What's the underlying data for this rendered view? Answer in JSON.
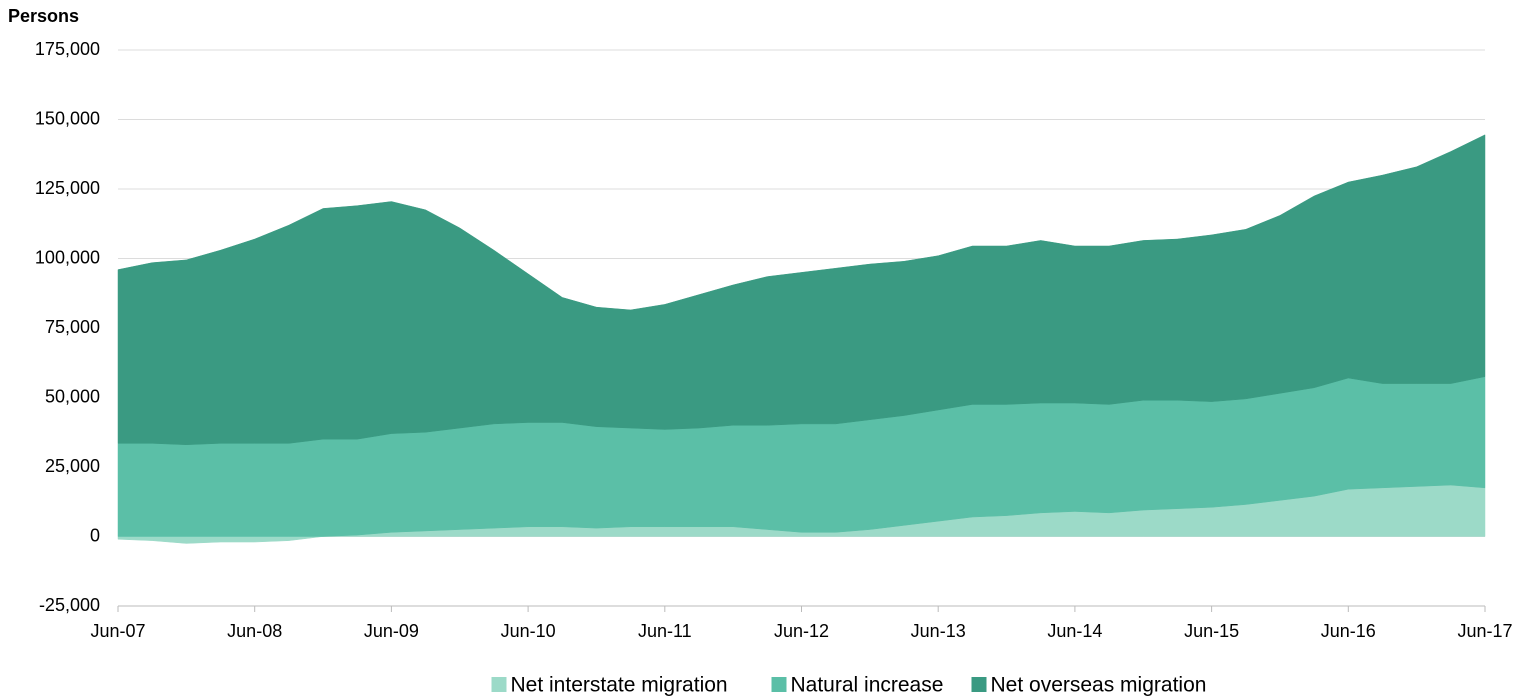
{
  "chart_data": {
    "type": "area",
    "stacked": true,
    "y_label": "Persons",
    "categories": [
      "Jun-07",
      null,
      null,
      null,
      "Jun-08",
      null,
      null,
      null,
      "Jun-09",
      null,
      null,
      null,
      "Jun-10",
      null,
      null,
      null,
      "Jun-11",
      null,
      null,
      null,
      "Jun-12",
      null,
      null,
      null,
      "Jun-13",
      null,
      null,
      null,
      "Jun-14",
      null,
      null,
      null,
      "Jun-15",
      null,
      null,
      null,
      "Jun-16",
      null,
      null,
      null,
      "Jun-17"
    ],
    "series": [
      {
        "name": "Net interstate migration",
        "color": "#9cdac8",
        "values": [
          -1000,
          -1500,
          -2500,
          -2000,
          -2000,
          -1500,
          0,
          500,
          1500,
          2000,
          2500,
          3000,
          3500,
          3500,
          3000,
          3500,
          3500,
          3500,
          3500,
          2500,
          1500,
          1500,
          2500,
          4000,
          5500,
          7000,
          7500,
          8500,
          9000,
          8500,
          9500,
          10000,
          10500,
          11500,
          13000,
          14500,
          17000,
          17500,
          18000,
          18500,
          17500
        ]
      },
      {
        "name": "Natural increase",
        "color": "#5bbfa7",
        "values": [
          33500,
          33500,
          33000,
          33500,
          33500,
          33500,
          35000,
          34500,
          35500,
          35500,
          36500,
          37500,
          37500,
          37500,
          36500,
          35500,
          35000,
          35500,
          36500,
          37500,
          39000,
          39000,
          39500,
          39500,
          40000,
          40500,
          40000,
          39500,
          39000,
          39000,
          39500,
          39000,
          38000,
          38000,
          38500,
          39000,
          40000,
          37500,
          37000,
          36500,
          40000
        ]
      },
      {
        "name": "Net overseas migration",
        "color": "#3a9a82",
        "values": [
          62500,
          65000,
          66500,
          69500,
          73500,
          78500,
          83000,
          84000,
          83500,
          80000,
          72000,
          62500,
          53500,
          45000,
          43000,
          42500,
          45000,
          48000,
          50500,
          53500,
          54500,
          56000,
          56000,
          55500,
          55500,
          57000,
          57000,
          58500,
          56500,
          57000,
          57500,
          58000,
          60000,
          61000,
          64000,
          69000,
          70500,
          75000,
          78000,
          83500,
          87000
        ]
      }
    ],
    "ylim": [
      -25000,
      175000
    ],
    "yticks": [
      {
        "value": -25000,
        "label": "-25,000"
      },
      0,
      {
        "value": 25000,
        "label": "25,000"
      },
      {
        "value": 50000,
        "label": "50,000"
      },
      {
        "value": 75000,
        "label": "75,000"
      },
      {
        "value": 100000,
        "label": "100,000"
      },
      {
        "value": 125000,
        "label": "125,000"
      },
      {
        "value": 150000,
        "label": "150,000"
      },
      {
        "value": 175000,
        "label": "175,000"
      }
    ],
    "grid": true,
    "legend": "bottom"
  }
}
